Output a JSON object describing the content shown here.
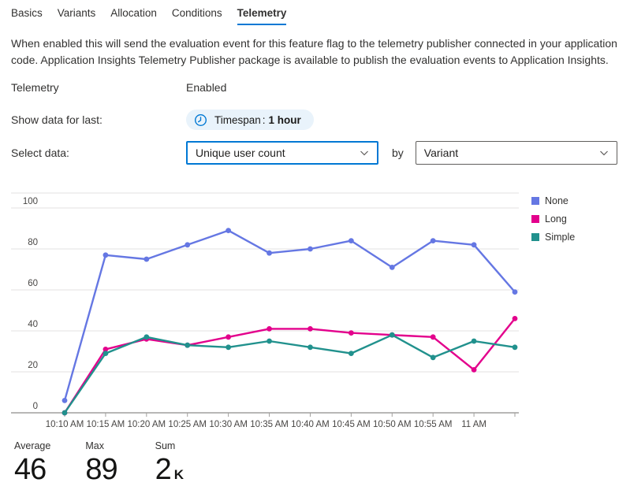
{
  "tabs": {
    "items": [
      {
        "label": "Basics"
      },
      {
        "label": "Variants"
      },
      {
        "label": "Allocation"
      },
      {
        "label": "Conditions"
      },
      {
        "label": "Telemetry"
      }
    ],
    "active_index": 4
  },
  "description": "When enabled this will send the evaluation event for this feature flag to the telemetry publisher connected in your application code. Application Insights Telemetry Publisher package is available to publish the evaluation events to Application Insights.",
  "form": {
    "telemetry": {
      "label": "Telemetry",
      "value": "Enabled"
    },
    "timespan": {
      "label": "Show data for last:",
      "pill_prefix": "Timespan",
      "pill_separator": ":",
      "pill_value": "1 hour",
      "icon": "clock-icon"
    },
    "select_data": {
      "label": "Select data:",
      "metric_value": "Unique user count",
      "by_label": "by",
      "group_value": "Variant"
    }
  },
  "chart_data": {
    "type": "line",
    "title": "",
    "xlabel": "",
    "ylabel": "",
    "ylim": [
      0,
      100
    ],
    "yticks": [
      0,
      20,
      40,
      60,
      80,
      100
    ],
    "grid": true,
    "legend_position": "right",
    "x_labels": [
      "10:10 AM",
      "10:15 AM",
      "10:20 AM",
      "10:25 AM",
      "10:30 AM",
      "10:35 AM",
      "10:40 AM",
      "10:45 AM",
      "10:50 AM",
      "10:55 AM",
      "11 AM",
      ""
    ],
    "series": [
      {
        "name": "None",
        "color": "#6577e3",
        "values": [
          6,
          77,
          75,
          82,
          89,
          78,
          80,
          84,
          71,
          84,
          82,
          59
        ]
      },
      {
        "name": "Long",
        "color": "#e3008c",
        "values": [
          0,
          31,
          36,
          33,
          37,
          41,
          41,
          39,
          38,
          37,
          21,
          46
        ]
      },
      {
        "name": "Simple",
        "color": "#21918d",
        "values": [
          0,
          29,
          37,
          33,
          32,
          35,
          32,
          29,
          38,
          27,
          35,
          32
        ]
      }
    ]
  },
  "stats": {
    "items": [
      {
        "label": "Average",
        "value": "46",
        "unit": ""
      },
      {
        "label": "Max",
        "value": "89",
        "unit": ""
      },
      {
        "label": "Sum",
        "value": "2",
        "unit": "K"
      }
    ]
  },
  "colors": {
    "accent": "#0078d4",
    "pill_bg": "#e9f3fb",
    "gridline": "#e3e2e0",
    "axis_line": "#a19f9d",
    "axis_text": "#484644"
  }
}
